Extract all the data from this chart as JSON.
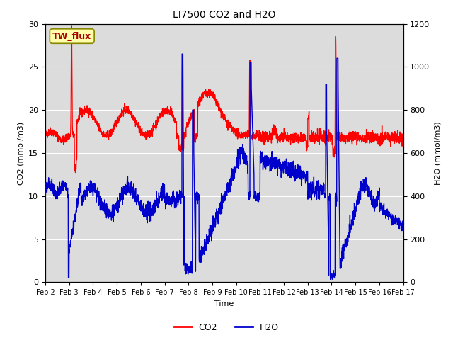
{
  "title": "LI7500 CO2 and H2O",
  "xlabel": "Time",
  "ylabel_left": "CO2 (mmol/m3)",
  "ylabel_right": "H2O (mmol/m3)",
  "xlim": [
    0,
    15
  ],
  "ylim_left": [
    0,
    30
  ],
  "ylim_right": [
    0,
    1200
  ],
  "xtick_labels": [
    "Feb 2",
    "Feb 3",
    "Feb 4",
    "Feb 5",
    "Feb 6",
    "Feb 7",
    "Feb 8",
    "Feb 9",
    "Feb 10",
    "Feb 11",
    "Feb 12",
    "Feb 13",
    "Feb 14",
    "Feb 15",
    "Feb 16",
    "Feb 17"
  ],
  "co2_color": "#ff0000",
  "h2o_color": "#0000cc",
  "legend_co2": "CO2",
  "legend_h2o": "H2O",
  "annotation_text": "TW_flux",
  "annotation_color": "#aa0000",
  "bg_color": "#dcdcdc",
  "line_width": 1.0,
  "title_fontsize": 10,
  "label_fontsize": 8,
  "tick_fontsize": 7,
  "legend_fontsize": 9
}
